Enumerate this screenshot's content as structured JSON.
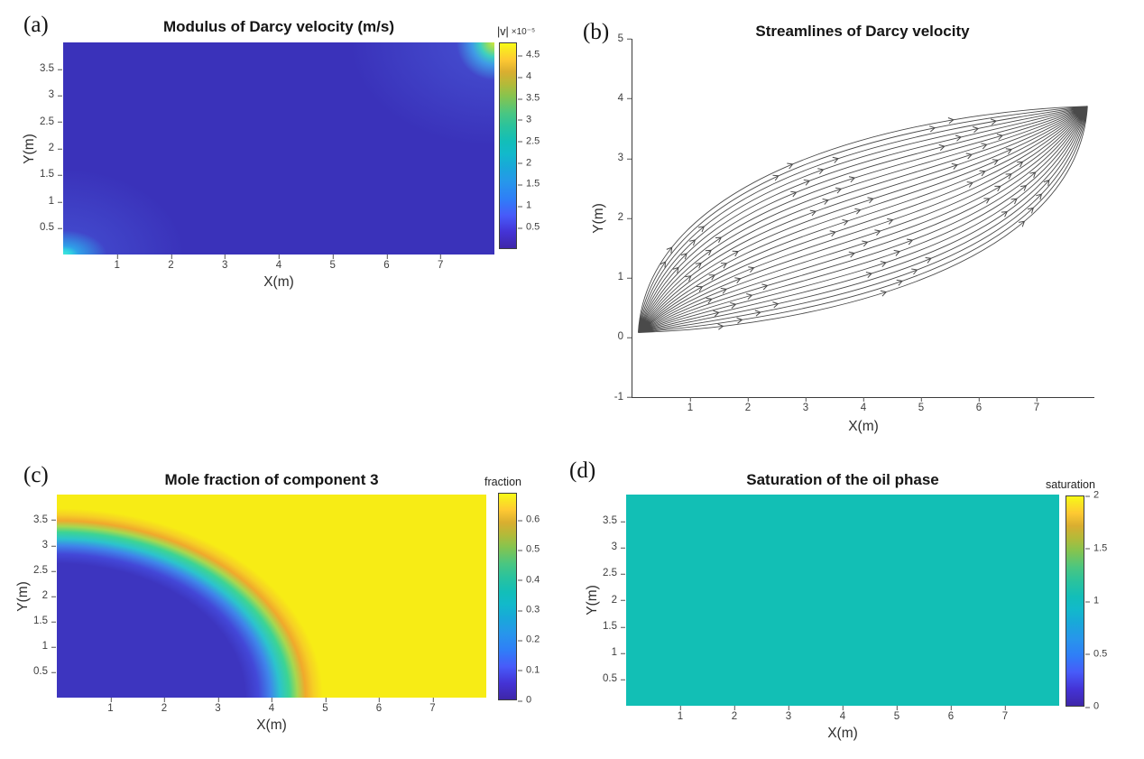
{
  "colors": {
    "parula": [
      [
        0,
        "#3e26a8"
      ],
      [
        0.08,
        "#4433d6"
      ],
      [
        0.16,
        "#475bf9"
      ],
      [
        0.24,
        "#2f7ef7"
      ],
      [
        0.32,
        "#2796eb"
      ],
      [
        0.4,
        "#18a9d8"
      ],
      [
        0.46,
        "#12b9cb"
      ],
      [
        0.52,
        "#12beb9"
      ],
      [
        0.6,
        "#2cc39b"
      ],
      [
        0.66,
        "#4ac681"
      ],
      [
        0.74,
        "#85c44f"
      ],
      [
        0.8,
        "#b3ba39"
      ],
      [
        0.86,
        "#d9ae30"
      ],
      [
        0.92,
        "#fec932"
      ],
      [
        0.97,
        "#f9e721"
      ],
      [
        1,
        "#f9fb15"
      ]
    ],
    "heatmap_base_blue": "#3a32ba",
    "injection_cyan": "#2fd0e2",
    "peak_yellow_green": "#d7e63a",
    "front_yellow": "#f7ec15",
    "oil_teal": "#12bfb5",
    "streamline": "#4a4a4a"
  },
  "chart_data": [
    {
      "type": "heatmap",
      "panel_tag": "(a)",
      "title": "Modulus of Darcy velocity (m/s)",
      "xlabel": "X(m)",
      "ylabel": "Y(m)",
      "x_range": [
        0,
        8
      ],
      "y_range": [
        0,
        4
      ],
      "x_ticks": [
        1,
        2,
        3,
        4,
        5,
        6,
        7
      ],
      "y_ticks": [
        0.5,
        1,
        1.5,
        2,
        2.5,
        3,
        3.5
      ],
      "colorbar": {
        "label": "|v|",
        "exponent": "×10⁻⁵",
        "range": [
          0,
          4.8
        ],
        "ticks": [
          0.5,
          1,
          1.5,
          2,
          2.5,
          3,
          3.5,
          4,
          4.5
        ]
      },
      "colormap": "parula",
      "field_summary": "Velocity magnitude is nearly uniform ≈0.2–0.4×10⁻⁵ m/s (dark blue) over the whole 8 m × 4 m domain; injection jet at bottom-left corner (0,0) reaches ≈1.5–2×10⁻⁵ (cyan glow); production corner at top-right (8,4) peaks ≈4.5×10⁻⁵ (small yellow-green spot with light-blue halo)."
    },
    {
      "type": "streamline",
      "panel_tag": "(b)",
      "title": "Streamlines of Darcy velocity",
      "xlabel": "X(m)",
      "ylabel": "Y(m)",
      "x_range": [
        0,
        8
      ],
      "y_range": [
        -1,
        5
      ],
      "x_ticks": [
        1,
        2,
        3,
        4,
        5,
        6,
        7
      ],
      "y_ticks": [
        -1,
        0,
        1,
        2,
        3,
        4,
        5
      ],
      "flow": {
        "source": [
          0.1,
          0.08
        ],
        "sink": [
          7.88,
          3.87
        ],
        "n_streamlines": 26,
        "ctrl_len": 2.8,
        "max_angle_deg": 88,
        "arrows_per_line": 3
      },
      "field_summary": "Streamlines fan out radially from the injection corner (0,0), run left-to-right across the rectangular domain 0≤x≤7.9, 0≤y≤3.9, and converge into the production corner (7.9,3.9); arrowheads mark the flow direction."
    },
    {
      "type": "heatmap",
      "panel_tag": "(c)",
      "title": "Mole fraction of component 3",
      "xlabel": "X(m)",
      "ylabel": "Y(m)",
      "x_range": [
        0,
        8
      ],
      "y_range": [
        0,
        4
      ],
      "x_ticks": [
        1,
        2,
        3,
        4,
        5,
        6,
        7
      ],
      "y_ticks": [
        0.5,
        1,
        1.5,
        2,
        2.5,
        3,
        3.5
      ],
      "colorbar": {
        "label": "fraction",
        "exponent": "",
        "range": [
          0,
          0.69
        ],
        "ticks": [
          0,
          0.1,
          0.2,
          0.3,
          0.4,
          0.5,
          0.6
        ]
      },
      "colormap": "parula",
      "field_summary": "Quarter-elliptical injection front centred on the bottom-left corner: mole fraction ≈0 (dark blue) inside the swept zone reaching x≈3.5 m along y=0 and y≈3 m along x=0; sharp transition band (blue→cyan→green→orange) between r≈3.5 and r≈5 m; uniform ≈0.69 (bright yellow) ahead of the front."
    },
    {
      "type": "heatmap",
      "panel_tag": "(d)",
      "title": "Saturation of the oil phase",
      "xlabel": "X(m)",
      "ylabel": "Y(m)",
      "x_range": [
        0,
        8
      ],
      "y_range": [
        0,
        4
      ],
      "x_ticks": [
        1,
        2,
        3,
        4,
        5,
        6,
        7
      ],
      "y_ticks": [
        0.5,
        1,
        1.5,
        2,
        2.5,
        3,
        3.5
      ],
      "colorbar": {
        "label": "saturation",
        "exponent": "",
        "range": [
          0,
          2
        ],
        "ticks": [
          0,
          0.5,
          1,
          1.5,
          2
        ]
      },
      "colormap": "parula",
      "uniform_value": 1,
      "field_summary": "Oil-phase saturation is uniformly 1 (teal, mid-scale of the 0–2 colorbar) over the entire 8 m × 4 m domain."
    }
  ]
}
